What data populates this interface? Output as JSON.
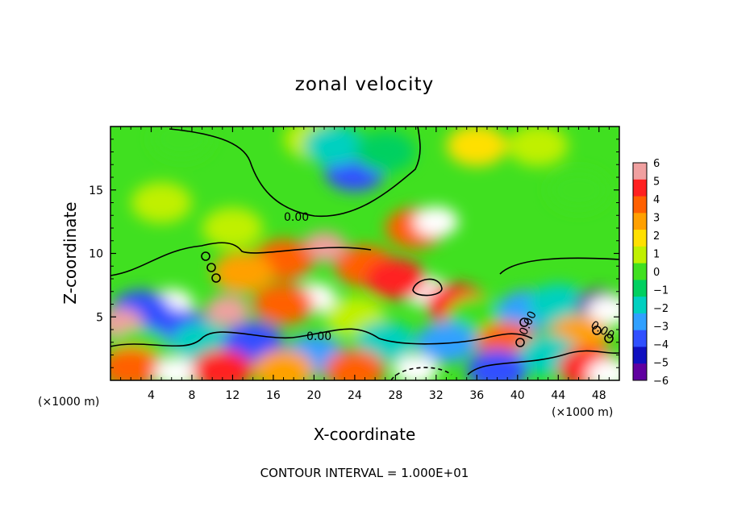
{
  "chart_data": {
    "type": "heatmap",
    "title": "zonal velocity",
    "xlabel": "X-coordinate",
    "ylabel": "Z-coordinate",
    "x_unit": "(×1000 m)",
    "xlim": [
      0,
      50
    ],
    "ylim": [
      0,
      20
    ],
    "x_ticks": [
      4,
      8,
      12,
      16,
      20,
      24,
      28,
      32,
      36,
      40,
      44,
      48
    ],
    "y_ticks": [
      5,
      10,
      15
    ],
    "colorbar": {
      "min": -6,
      "max": 6,
      "ticks": [
        6,
        5,
        4,
        3,
        2,
        1,
        0,
        -1,
        -2,
        -3,
        -4,
        -5,
        -6
      ],
      "colors": [
        "#f0a0a0",
        "#ff2020",
        "#ff6000",
        "#ffa000",
        "#ffe000",
        "#c0f000",
        "#40e020",
        "#00d060",
        "#00d0c0",
        "#30a0ff",
        "#3050ff",
        "#1010c0",
        "#6000a0"
      ]
    },
    "contour_labels": [
      "0.00",
      "0.00",
      "0.00",
      "0.00"
    ],
    "footer": "CONTOUR INTERVAL = 1.000E+01",
    "blobs": [
      {
        "x": 7,
        "y": 19,
        "value": 0.5
      },
      {
        "x": 20,
        "y": 19,
        "value": 0.8
      },
      {
        "x": 24,
        "y": 16.5,
        "value": -3.5
      },
      {
        "x": 22,
        "y": 18.5,
        "value": -1.5
      },
      {
        "x": 27,
        "y": 18,
        "value": -0.5
      },
      {
        "x": 36,
        "y": 18.5,
        "value": 1.8
      },
      {
        "x": 42,
        "y": 18.5,
        "value": 1.2
      },
      {
        "x": 46,
        "y": 15,
        "value": 0.3
      },
      {
        "x": 5,
        "y": 14,
        "value": 0.8
      },
      {
        "x": 12,
        "y": 12,
        "value": 0.6
      },
      {
        "x": 30,
        "y": 12,
        "value": 4.5
      },
      {
        "x": 32,
        "y": 12.5,
        "value": 6.5
      },
      {
        "x": 21,
        "y": 10.5,
        "value": 6
      },
      {
        "x": 17,
        "y": 9.5,
        "value": 4
      },
      {
        "x": 25,
        "y": 9,
        "value": 4
      },
      {
        "x": 13,
        "y": 8.5,
        "value": 3
      },
      {
        "x": 31,
        "y": 7,
        "value": 7
      },
      {
        "x": 28,
        "y": 8,
        "value": 5
      },
      {
        "x": 34,
        "y": 6,
        "value": 5
      },
      {
        "x": 20,
        "y": 6.5,
        "value": 6.5
      },
      {
        "x": 17,
        "y": 6,
        "value": 4
      },
      {
        "x": 11.5,
        "y": 5.5,
        "value": 6
      },
      {
        "x": 6,
        "y": 6,
        "value": 6.5
      },
      {
        "x": 3,
        "y": 5.5,
        "value": -4
      },
      {
        "x": 7,
        "y": 4,
        "value": -3.5
      },
      {
        "x": 1,
        "y": 4.5,
        "value": 6
      },
      {
        "x": 24,
        "y": 5,
        "value": 1.5
      },
      {
        "x": 36,
        "y": 5,
        "value": 0.5
      },
      {
        "x": 41,
        "y": 5.5,
        "value": -3
      },
      {
        "x": 44,
        "y": 6,
        "value": -1.5
      },
      {
        "x": 48,
        "y": 6,
        "value": -6
      },
      {
        "x": 49,
        "y": 5.5,
        "value": 6.5
      },
      {
        "x": 39,
        "y": 3,
        "value": 4.5
      },
      {
        "x": 46,
        "y": 3.5,
        "value": 3
      },
      {
        "x": 3,
        "y": 2.5,
        "value": 0.5
      },
      {
        "x": 9,
        "y": 3,
        "value": -2
      },
      {
        "x": 14,
        "y": 3,
        "value": -4
      },
      {
        "x": 20,
        "y": 2,
        "value": -3
      },
      {
        "x": 27,
        "y": 3,
        "value": -2
      },
      {
        "x": 33,
        "y": 3,
        "value": -3
      },
      {
        "x": 43,
        "y": 2,
        "value": -1.5
      },
      {
        "x": 2,
        "y": 1,
        "value": 4
      },
      {
        "x": 6.5,
        "y": 0.6,
        "value": 6.5
      },
      {
        "x": 11,
        "y": 0.8,
        "value": 5
      },
      {
        "x": 17,
        "y": 0.8,
        "value": 3
      },
      {
        "x": 24,
        "y": 0.8,
        "value": 4
      },
      {
        "x": 30,
        "y": 0.8,
        "value": 7
      },
      {
        "x": 38,
        "y": 0.8,
        "value": -4
      },
      {
        "x": 47,
        "y": 1,
        "value": 5
      },
      {
        "x": 49,
        "y": 0.5,
        "value": 6.5
      }
    ]
  }
}
